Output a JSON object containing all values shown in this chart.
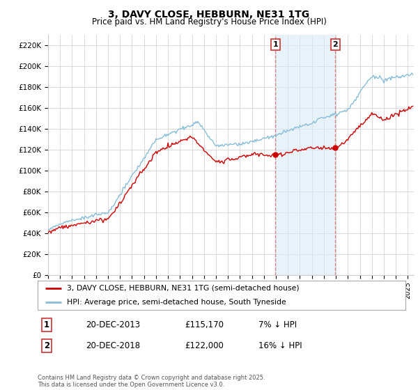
{
  "title": "3, DAVY CLOSE, HEBBURN, NE31 1TG",
  "subtitle": "Price paid vs. HM Land Registry's House Price Index (HPI)",
  "legend_label_red": "3, DAVY CLOSE, HEBBURN, NE31 1TG (semi-detached house)",
  "legend_label_blue": "HPI: Average price, semi-detached house, South Tyneside",
  "footnote": "Contains HM Land Registry data © Crown copyright and database right 2025.\nThis data is licensed under the Open Government Licence v3.0.",
  "annotation1_date": "20-DEC-2013",
  "annotation1_price": "£115,170",
  "annotation1_hpi": "7% ↓ HPI",
  "annotation2_date": "20-DEC-2018",
  "annotation2_price": "£122,000",
  "annotation2_hpi": "16% ↓ HPI",
  "ylim": [
    0,
    230000
  ],
  "yticks": [
    0,
    20000,
    40000,
    60000,
    80000,
    100000,
    120000,
    140000,
    160000,
    180000,
    200000,
    220000
  ],
  "ytick_labels": [
    "£0",
    "£20K",
    "£40K",
    "£60K",
    "£80K",
    "£100K",
    "£120K",
    "£140K",
    "£160K",
    "£180K",
    "£200K",
    "£220K"
  ],
  "color_red": "#cc0000",
  "color_blue": "#87bdd8",
  "color_shading": "#daeaf5",
  "background_color": "#ffffff",
  "grid_color": "#cccccc",
  "annotation_vline_color": "#e08080",
  "sale1_x": 2013.96,
  "sale1_y": 115170,
  "sale2_x": 2018.96,
  "sale2_y": 122000,
  "xmin": 1995,
  "xmax": 2025.5,
  "xticks": [
    1995,
    1996,
    1997,
    1998,
    1999,
    2000,
    2001,
    2002,
    2003,
    2004,
    2005,
    2006,
    2007,
    2008,
    2009,
    2010,
    2011,
    2012,
    2013,
    2014,
    2015,
    2016,
    2017,
    2018,
    2019,
    2020,
    2021,
    2022,
    2023,
    2024,
    2025
  ]
}
